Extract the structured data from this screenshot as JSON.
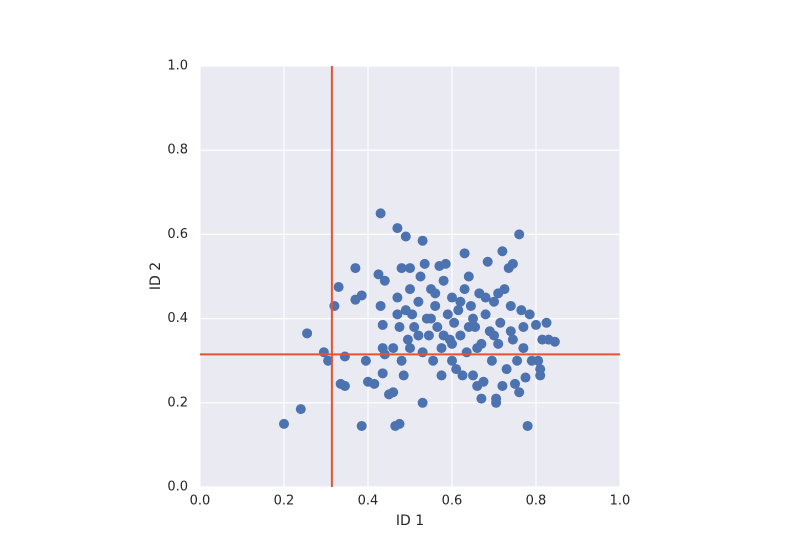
{
  "chart_data": {
    "type": "scatter",
    "x_label": "ID 1",
    "y_label": "ID 2",
    "color": "#4c72b0",
    "grid": true,
    "xlim": [
      0,
      1
    ],
    "ylim": [
      0,
      1
    ],
    "xticks": [
      {
        "value": 0,
        "label": "0.0"
      },
      0.2,
      0.4,
      0.6,
      0.8,
      {
        "value": 1,
        "label": "1.0"
      }
    ],
    "yticks": [
      {
        "value": 0,
        "label": "0.0"
      },
      0.2,
      0.4,
      0.6,
      0.8,
      {
        "value": 1,
        "label": "1.0"
      }
    ],
    "reference_lines": {
      "x": 0.314,
      "y": 0.315,
      "color": "#e5532f"
    },
    "x": [
      0.2,
      0.24,
      0.255,
      0.295,
      0.305,
      0.32,
      0.33,
      0.335,
      0.345,
      0.345,
      0.37,
      0.37,
      0.385,
      0.385,
      0.395,
      0.4,
      0.415,
      0.425,
      0.43,
      0.43,
      0.435,
      0.435,
      0.435,
      0.44,
      0.44,
      0.45,
      0.46,
      0.465,
      0.47,
      0.47,
      0.475,
      0.475,
      0.48,
      0.48,
      0.485,
      0.49,
      0.49,
      0.495,
      0.5,
      0.5,
      0.505,
      0.51,
      0.52,
      0.525,
      0.53,
      0.53,
      0.53,
      0.535,
      0.54,
      0.545,
      0.55,
      0.555,
      0.56,
      0.565,
      0.57,
      0.575,
      0.575,
      0.58,
      0.585,
      0.59,
      0.595,
      0.6,
      0.6,
      0.605,
      0.61,
      0.615,
      0.62,
      0.625,
      0.63,
      0.63,
      0.635,
      0.64,
      0.645,
      0.65,
      0.655,
      0.66,
      0.665,
      0.67,
      0.67,
      0.675,
      0.68,
      0.685,
      0.69,
      0.695,
      0.7,
      0.705,
      0.705,
      0.71,
      0.715,
      0.72,
      0.72,
      0.725,
      0.73,
      0.735,
      0.74,
      0.745,
      0.745,
      0.75,
      0.755,
      0.76,
      0.76,
      0.765,
      0.77,
      0.77,
      0.775,
      0.78,
      0.785,
      0.79,
      0.8,
      0.805,
      0.81,
      0.815,
      0.825,
      0.83,
      0.845,
      0.81,
      0.5,
      0.55,
      0.6,
      0.65,
      0.7,
      0.62,
      0.58,
      0.68,
      0.56,
      0.52,
      0.47,
      0.46,
      0.66,
      0.74,
      0.71,
      0.64
    ],
    "y": [
      0.15,
      0.185,
      0.365,
      0.32,
      0.3,
      0.43,
      0.475,
      0.245,
      0.24,
      0.31,
      0.52,
      0.445,
      0.455,
      0.145,
      0.3,
      0.25,
      0.245,
      0.505,
      0.65,
      0.43,
      0.385,
      0.33,
      0.27,
      0.315,
      0.49,
      0.22,
      0.225,
      0.145,
      0.615,
      0.45,
      0.15,
      0.38,
      0.52,
      0.3,
      0.265,
      0.595,
      0.42,
      0.35,
      0.47,
      0.52,
      0.41,
      0.38,
      0.44,
      0.5,
      0.585,
      0.2,
      0.32,
      0.53,
      0.4,
      0.36,
      0.47,
      0.3,
      0.43,
      0.38,
      0.525,
      0.33,
      0.265,
      0.49,
      0.53,
      0.41,
      0.35,
      0.3,
      0.45,
      0.39,
      0.28,
      0.42,
      0.36,
      0.265,
      0.555,
      0.47,
      0.32,
      0.5,
      0.43,
      0.265,
      0.38,
      0.24,
      0.46,
      0.21,
      0.34,
      0.25,
      0.41,
      0.535,
      0.37,
      0.3,
      0.44,
      0.21,
      0.2,
      0.34,
      0.39,
      0.56,
      0.24,
      0.47,
      0.28,
      0.52,
      0.43,
      0.53,
      0.35,
      0.245,
      0.3,
      0.6,
      0.225,
      0.42,
      0.33,
      0.38,
      0.26,
      0.145,
      0.41,
      0.3,
      0.385,
      0.3,
      0.265,
      0.35,
      0.39,
      0.35,
      0.345,
      0.28,
      0.33,
      0.4,
      0.34,
      0.4,
      0.36,
      0.44,
      0.36,
      0.45,
      0.46,
      0.36,
      0.41,
      0.33,
      0.33,
      0.37,
      0.46,
      0.38
    ]
  }
}
